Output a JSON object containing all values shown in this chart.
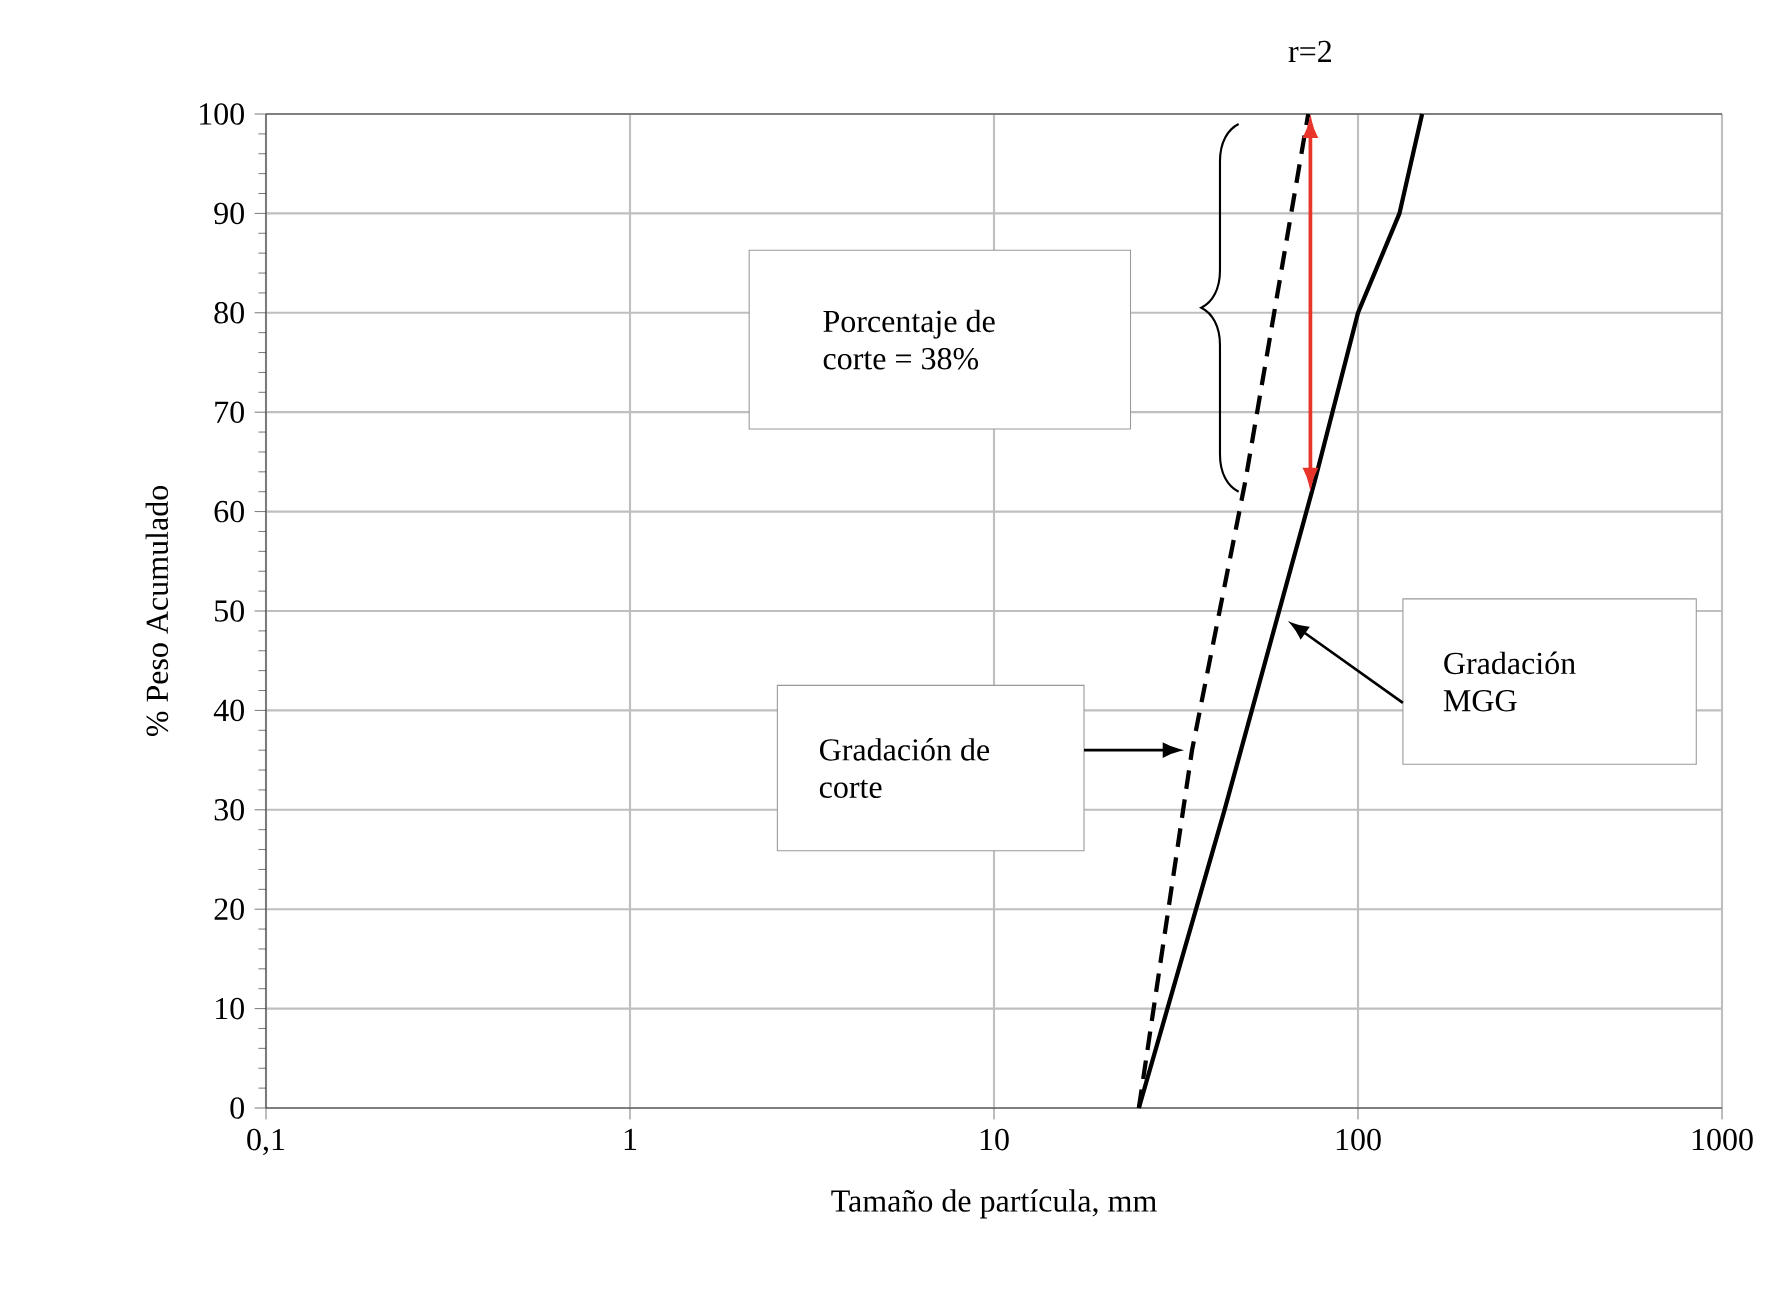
{
  "chart_data": {
    "type": "line",
    "xlabel": "Tamaño de partícula, mm",
    "ylabel": "% Peso Acumulado",
    "log": "x",
    "grid": true,
    "xlim": [
      0.1,
      1000
    ],
    "ylim": [
      0,
      100
    ],
    "xticks": [
      {
        "value": 0.1,
        "label": "0,1"
      },
      1,
      10,
      100,
      1000
    ],
    "yticks": [
      0,
      10,
      20,
      30,
      40,
      50,
      60,
      70,
      80,
      90,
      100
    ],
    "series": [
      {
        "color": "#000000",
        "line_style": "solid",
        "x": [
          25,
          43,
          76,
          100,
          130,
          150
        ],
        "values": [
          0,
          30,
          63,
          80,
          90,
          100
        ]
      },
      {
        "color": "#000000",
        "line_style": "dashed",
        "x": [
          25,
          35,
          49,
          73
        ],
        "values": [
          0,
          36,
          63,
          100
        ]
      }
    ],
    "annotations": [
      {
        "text": "r=2",
        "x": 74,
        "y": 100
      },
      "Porcentaje de corte = 38%",
      "Gradación de corte",
      "Gradación MGG"
    ]
  }
}
